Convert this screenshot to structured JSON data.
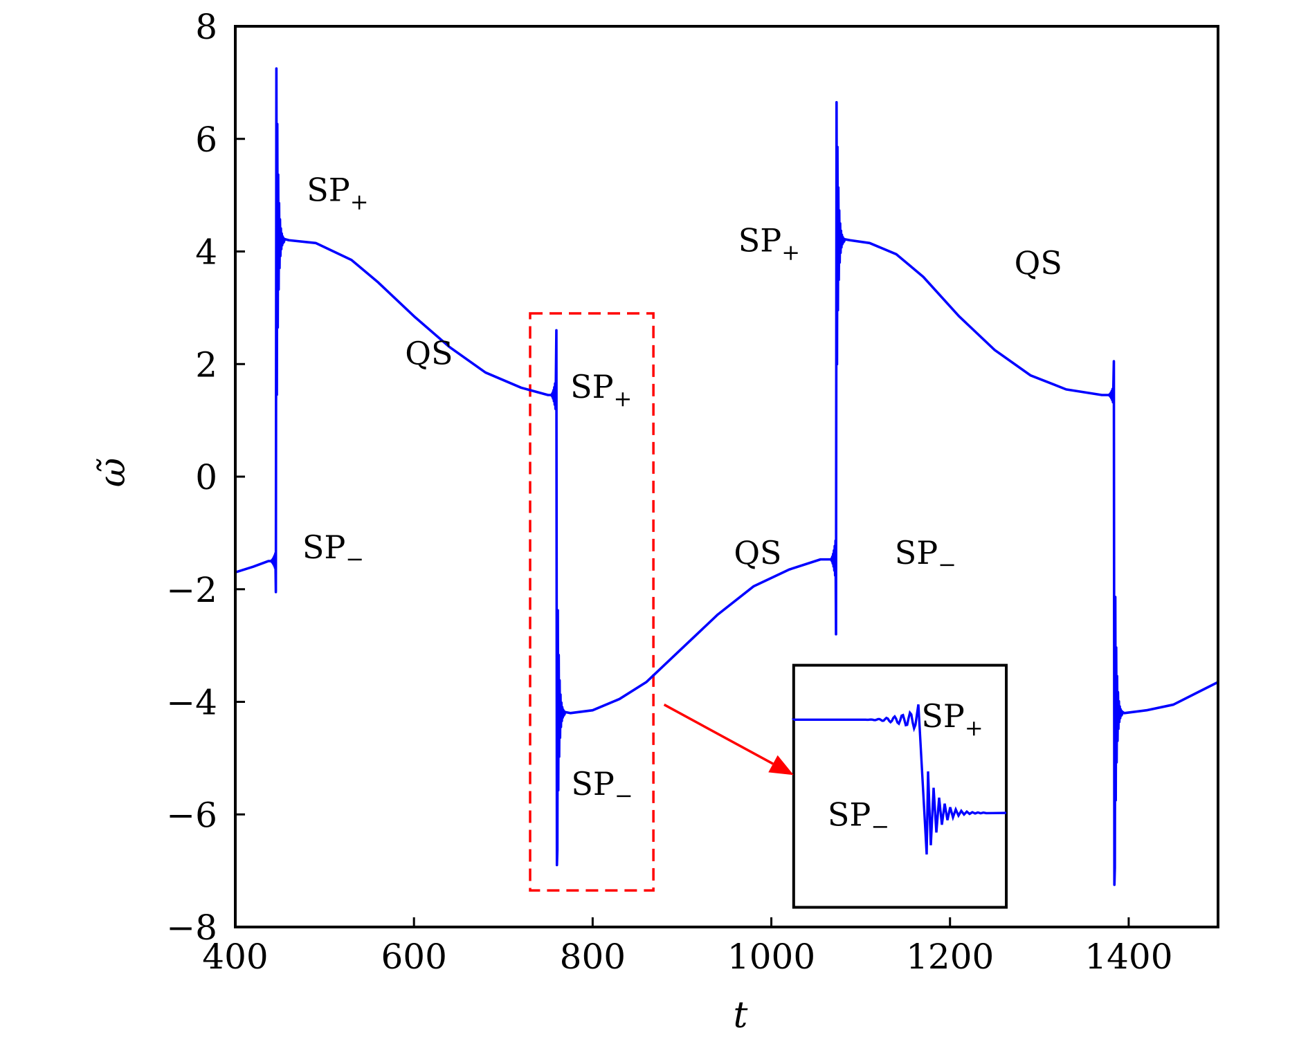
{
  "chart_data": {
    "type": "line",
    "xlabel": "t",
    "ylabel": "ω̃",
    "xlim": [
      400,
      1500
    ],
    "ylim": [
      -8,
      8
    ],
    "xticks": [
      400,
      600,
      800,
      1000,
      1200,
      1400
    ],
    "xtick_labels": [
      "400",
      "600",
      "800",
      "1000",
      "1200",
      "1400"
    ],
    "yticks": [
      -8,
      -6,
      -4,
      -2,
      0,
      2,
      4,
      6,
      8
    ],
    "ytick_labels": [
      "−8",
      "−6",
      "−4",
      "−2",
      "0",
      "2",
      "4",
      "6",
      "8"
    ],
    "grid": false,
    "series": [
      {
        "color": "#0000ff",
        "segments": [
          {
            "kind": "qs",
            "points": [
              [
                400,
                -1.7
              ],
              [
                420,
                -1.6
              ],
              [
                437,
                -1.5
              ]
            ]
          },
          {
            "kind": "spike",
            "t": 446,
            "from": -1.5,
            "to": 4.2,
            "min": -2.05,
            "max": 7.25
          },
          {
            "kind": "qs",
            "points": [
              [
                460,
                4.2
              ],
              [
                490,
                4.15
              ],
              [
                530,
                3.85
              ],
              [
                560,
                3.45
              ],
              [
                600,
                2.85
              ],
              [
                640,
                2.3
              ],
              [
                680,
                1.85
              ],
              [
                720,
                1.58
              ],
              [
                750,
                1.45
              ]
            ]
          },
          {
            "kind": "spike",
            "t": 760,
            "from": 1.45,
            "to": -4.2,
            "min": -6.9,
            "max": 2.6
          },
          {
            "kind": "qs",
            "points": [
              [
                775,
                -4.2
              ],
              [
                800,
                -4.15
              ],
              [
                830,
                -3.95
              ],
              [
                860,
                -3.65
              ],
              [
                900,
                -3.05
              ],
              [
                940,
                -2.45
              ],
              [
                980,
                -1.95
              ],
              [
                1020,
                -1.65
              ],
              [
                1055,
                -1.47
              ]
            ]
          },
          {
            "kind": "spike",
            "t": 1073,
            "from": -1.47,
            "to": 4.2,
            "min": -2.8,
            "max": 6.65
          },
          {
            "kind": "qs",
            "points": [
              [
                1088,
                4.2
              ],
              [
                1110,
                4.15
              ],
              [
                1140,
                3.95
              ],
              [
                1170,
                3.55
              ],
              [
                1210,
                2.85
              ],
              [
                1250,
                2.25
              ],
              [
                1290,
                1.8
              ],
              [
                1330,
                1.55
              ],
              [
                1370,
                1.45
              ]
            ]
          },
          {
            "kind": "spike",
            "t": 1384,
            "from": 1.45,
            "to": -4.2,
            "min": -7.25,
            "max": 2.05
          },
          {
            "kind": "qs",
            "points": [
              [
                1395,
                -4.2
              ],
              [
                1420,
                -4.15
              ],
              [
                1450,
                -4.05
              ],
              [
                1475,
                -3.85
              ],
              [
                1500,
                -3.65
              ]
            ]
          }
        ]
      }
    ],
    "annotations": [
      {
        "text": "SP",
        "sub": "+",
        "x": 480,
        "y": 4.9
      },
      {
        "text": "QS",
        "x": 590,
        "y": 2.0
      },
      {
        "text": "SP",
        "sub": "−",
        "x": 475,
        "y": -1.45
      },
      {
        "text": "SP",
        "sub": "+",
        "x": 775,
        "y": 1.4
      },
      {
        "text": "SP",
        "sub": "−",
        "x": 776,
        "y": -5.65
      },
      {
        "text": "QS",
        "x": 958,
        "y": -1.55
      },
      {
        "text": "SP",
        "sub": "+",
        "x": 963,
        "y": 4.0
      },
      {
        "text": "QS",
        "x": 1272,
        "y": 3.6
      },
      {
        "text": "SP",
        "sub": "−",
        "x": 1138,
        "y": -1.55
      }
    ],
    "highlight_box": {
      "x0": 730,
      "x1": 868,
      "y0": -7.35,
      "y1": 2.9,
      "color": "#ff0000",
      "style": "dashed"
    },
    "arrow": {
      "from": [
        880,
        -4.05
      ],
      "to": [
        1025,
        -5.3
      ],
      "color": "#ff0000"
    },
    "inset": {
      "box": {
        "x0": 1025,
        "x1": 1263,
        "y0": -7.65,
        "y1": -3.35
      },
      "annotations": [
        {
          "text": "SP",
          "sub": "+",
          "x": 1168,
          "y": -4.45
        },
        {
          "text": "SP",
          "sub": "−",
          "x": 1063,
          "y": -6.2
        }
      ]
    }
  }
}
